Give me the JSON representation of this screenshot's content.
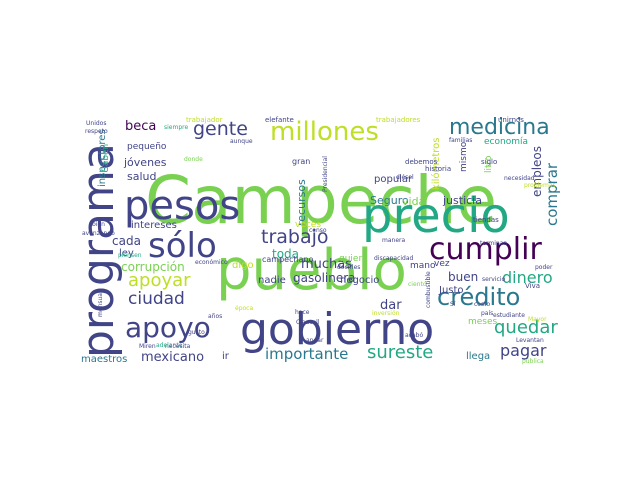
{
  "cloud": {
    "words": [
      {
        "text": "Campeche",
        "color": "#7ad151"
      },
      {
        "text": "pueblo",
        "color": "#7ad151"
      },
      {
        "text": "gobierno",
        "color": "#414487"
      },
      {
        "text": "precio",
        "color": "#22a884"
      },
      {
        "text": "programa",
        "color": "#414487"
      },
      {
        "text": "pesos",
        "color": "#414487"
      },
      {
        "text": "sólo",
        "color": "#414487"
      },
      {
        "text": "millones",
        "color": "#bddf26"
      },
      {
        "text": "medicina",
        "color": "#2a788e"
      },
      {
        "text": "cumplir",
        "color": "#440154"
      },
      {
        "text": "crédito",
        "color": "#2a788e"
      },
      {
        "text": "apoyo",
        "color": "#414487"
      },
      {
        "text": "gente",
        "color": "#414487"
      },
      {
        "text": "trabajo",
        "color": "#414487"
      },
      {
        "text": "comprar",
        "color": "#2a788e"
      },
      {
        "text": "quedar",
        "color": "#22a884"
      },
      {
        "text": "apoyar",
        "color": "#bddf26"
      },
      {
        "text": "ciudad",
        "color": "#414487"
      },
      {
        "text": "pagar",
        "color": "#414487"
      },
      {
        "text": "sureste",
        "color": "#22a884"
      },
      {
        "text": "dinero",
        "color": "#22a884"
      },
      {
        "text": "importante",
        "color": "#2a788e"
      },
      {
        "text": "mexicano",
        "color": "#414487"
      },
      {
        "text": "beca",
        "color": "#440154"
      },
      {
        "text": "corrupción",
        "color": "#7ad151"
      },
      {
        "text": "muchas",
        "color": "#414487"
      },
      {
        "text": "toda",
        "color": "#22a884"
      },
      {
        "text": "empleos",
        "color": "#414487"
      },
      {
        "text": "cada",
        "color": "#414487"
      },
      {
        "text": "gasolinera",
        "color": "#414487"
      },
      {
        "text": "dar",
        "color": "#414487"
      },
      {
        "text": "buen",
        "color": "#414487"
      },
      {
        "text": "justicia",
        "color": "#414487"
      },
      {
        "text": "Seguro",
        "color": "#2a788e"
      },
      {
        "text": "vida",
        "color": "#7ad151"
      },
      {
        "text": "jóvenes",
        "color": "#414487"
      },
      {
        "text": "salud",
        "color": "#414487"
      },
      {
        "text": "intereses",
        "color": "#414487"
      },
      {
        "text": "ley",
        "color": "#414487"
      },
      {
        "text": "digo",
        "color": "#bddf26"
      },
      {
        "text": "nadie",
        "color": "#414487"
      },
      {
        "text": "negocio",
        "color": "#414487"
      },
      {
        "text": "Justo",
        "color": "#414487"
      },
      {
        "text": "maestros",
        "color": "#2a788e"
      },
      {
        "text": "ir",
        "color": "#414487"
      },
      {
        "text": "llega",
        "color": "#2a788e"
      },
      {
        "text": "recursos",
        "color": "#2a788e"
      },
      {
        "text": "inspectores",
        "color": "#2a788e"
      },
      {
        "text": "kilómetros",
        "color": "#bddf26"
      },
      {
        "text": "mismo",
        "color": "#414487"
      },
      {
        "text": "litro",
        "color": "#7ad151"
      },
      {
        "text": "economía",
        "color": "#22a884"
      },
      {
        "text": "popular",
        "color": "#414487"
      },
      {
        "text": "quiero",
        "color": "#7ad151"
      },
      {
        "text": "mano",
        "color": "#414487"
      },
      {
        "text": "vez",
        "color": "#414487"
      },
      {
        "text": "meses",
        "color": "#7ad151"
      },
      {
        "text": "Saben",
        "color": "#22a884"
      },
      {
        "text": "pequeño",
        "color": "#414487"
      },
      {
        "text": "campechano",
        "color": "#414487"
      },
      {
        "text": "veces",
        "color": "#bddf26"
      },
      {
        "text": "gran",
        "color": "#414487"
      },
      {
        "text": "historia",
        "color": "#414487"
      },
      {
        "text": "debemos",
        "color": "#414487"
      },
      {
        "text": "siglo",
        "color": "#414487"
      },
      {
        "text": "tiendas",
        "color": "#414487"
      },
      {
        "text": "Viva",
        "color": "#414487"
      },
      {
        "text": "servicio",
        "color": "#414487"
      },
      {
        "text": "poder",
        "color": "#414487"
      },
      {
        "text": "estudiante",
        "color": "#414487"
      },
      {
        "text": "acabó",
        "color": "#414487"
      },
      {
        "text": "Levantan",
        "color": "#414487"
      },
      {
        "text": "Mayor",
        "color": "#bddf26"
      },
      {
        "text": "trabajador",
        "color": "#bddf26"
      },
      {
        "text": "trabajadores",
        "color": "#bddf26"
      },
      {
        "text": "elefante",
        "color": "#414487"
      },
      {
        "text": "unirnos",
        "color": "#414487"
      },
      {
        "text": "Unidos",
        "color": "#414487"
      },
      {
        "text": "respeto",
        "color": "#414487"
      },
      {
        "text": "siempre",
        "color": "#22a884"
      },
      {
        "text": "aunque",
        "color": "#414487"
      },
      {
        "text": "donde",
        "color": "#7ad151"
      },
      {
        "text": "familias",
        "color": "#414487"
      },
      {
        "text": "necesidad",
        "color": "#414487"
      },
      {
        "text": "Presidencial",
        "color": "#414487"
      },
      {
        "text": "diésel",
        "color": "#414487"
      },
      {
        "text": "problemas",
        "color": "#bddf26"
      },
      {
        "text": "bien",
        "color": "#414487"
      },
      {
        "text": "avanzando",
        "color": "#414487"
      },
      {
        "text": "piensen",
        "color": "#22a884"
      },
      {
        "text": "mensual",
        "color": "#414487"
      },
      {
        "text": "económico",
        "color": "#414487"
      },
      {
        "text": "Clausell",
        "color": "#414487"
      },
      {
        "text": "decirles",
        "color": "#414487"
      },
      {
        "text": "discapacidad",
        "color": "#414487"
      },
      {
        "text": "manera",
        "color": "#414487"
      },
      {
        "text": "terminan",
        "color": "#414487"
      },
      {
        "text": "censo",
        "color": "#414487"
      },
      {
        "text": "época",
        "color": "#bddf26"
      },
      {
        "text": "gusto",
        "color": "#414487"
      },
      {
        "text": "años",
        "color": "#414487"
      },
      {
        "text": "necesita",
        "color": "#414487"
      },
      {
        "text": "andar",
        "color": "#414487"
      },
      {
        "text": "adelante",
        "color": "#22a884"
      },
      {
        "text": "Miren",
        "color": "#414487"
      },
      {
        "text": "inversión",
        "color": "#bddf26"
      },
      {
        "text": "país",
        "color": "#414487"
      },
      {
        "text": "pública",
        "color": "#7ad151"
      },
      {
        "text": "combustible",
        "color": "#414487"
      },
      {
        "text": "hace",
        "color": "#414487"
      },
      {
        "text": "ciento",
        "color": "#7ad151"
      },
      {
        "text": "Sí",
        "color": "#414487"
      },
      {
        "text": "costo",
        "color": "#414487"
      }
    ]
  }
}
